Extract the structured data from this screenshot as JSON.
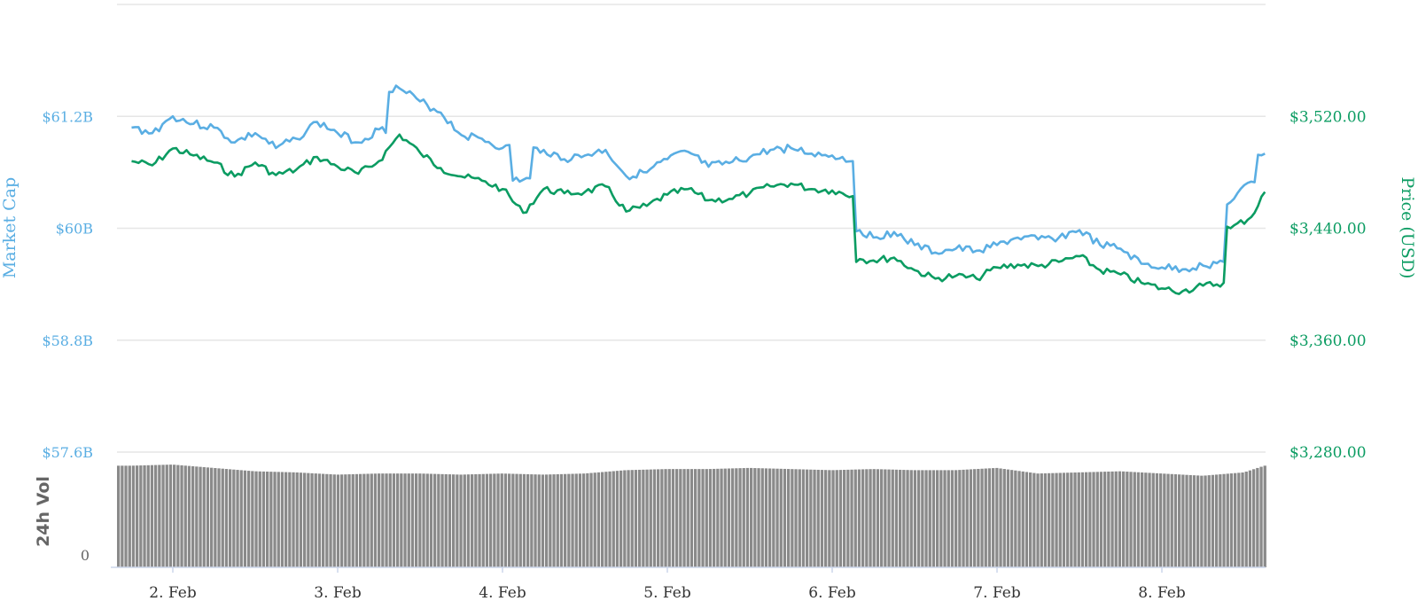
{
  "chart_data": {
    "type": "line",
    "x_ticks": [
      "2. Feb",
      "3. Feb",
      "4. Feb",
      "5. Feb",
      "6. Feb",
      "7. Feb",
      "8. Feb"
    ],
    "x_range": [
      "2. Feb",
      "8. Feb"
    ],
    "left_axis": {
      "title": "Market Cap",
      "ticks": [
        "$61.2B",
        "$60B",
        "$58.8B",
        "$57.6B"
      ],
      "tick_values": [
        61.2,
        60.0,
        58.8,
        57.6
      ],
      "unit": "USD billions",
      "range": [
        57.6,
        62.4
      ]
    },
    "right_axis": {
      "title": "Price (USD)",
      "ticks": [
        "$3,520.00",
        "$3,440.00",
        "$3,360.00",
        "$3,280.00"
      ],
      "tick_values": [
        3520,
        3440,
        3360,
        3280
      ],
      "range": [
        3280,
        3600
      ]
    },
    "volume_axis": {
      "title": "24h Vol",
      "ticks": [
        "0"
      ],
      "tick_values": [
        0
      ]
    },
    "grid": true,
    "colors": {
      "market_cap": "#5aaee3",
      "price": "#0b9c62",
      "volume": "#8a8a8a",
      "grid": "#e6e6e6"
    },
    "series": [
      {
        "key": "market_cap",
        "axis": "left",
        "points": [
          [
            "1. Feb 18:00",
            61.08
          ],
          [
            "1. Feb 21:00",
            61.02
          ],
          [
            "2. Feb 00:00",
            61.2
          ],
          [
            "2. Feb 03:00",
            61.12
          ],
          [
            "2. Feb 06:00",
            61.08
          ],
          [
            "2. Feb 09:00",
            60.92
          ],
          [
            "2. Feb 12:00",
            61.02
          ],
          [
            "2. Feb 15:00",
            60.86
          ],
          [
            "2. Feb 18:00",
            60.96
          ],
          [
            "2. Feb 21:00",
            61.14
          ],
          [
            "3. Feb 00:00",
            61.02
          ],
          [
            "3. Feb 03:00",
            60.92
          ],
          [
            "3. Feb 06:00",
            61.06
          ],
          [
            "3. Feb 09:00",
            61.5
          ],
          [
            "3. Feb 12:00",
            61.36
          ],
          [
            "3. Feb 15:00",
            61.24
          ],
          [
            "3. Feb 18:00",
            61.0
          ],
          [
            "3. Feb 21:00",
            60.96
          ],
          [
            "4. Feb 00:00",
            60.86
          ],
          [
            "4. Feb 03:00",
            60.52
          ],
          [
            "4. Feb 06:00",
            60.84
          ],
          [
            "4. Feb 09:00",
            60.74
          ],
          [
            "4. Feb 12:00",
            60.78
          ],
          [
            "4. Feb 15:00",
            60.84
          ],
          [
            "4. Feb 18:00",
            60.56
          ],
          [
            "4. Feb 21:00",
            60.6
          ],
          [
            "5. Feb 00:00",
            60.74
          ],
          [
            "5. Feb 03:00",
            60.82
          ],
          [
            "5. Feb 06:00",
            60.66
          ],
          [
            "5. Feb 09:00",
            60.7
          ],
          [
            "5. Feb 12:00",
            60.76
          ],
          [
            "5. Feb 15:00",
            60.84
          ],
          [
            "5. Feb 18:00",
            60.86
          ],
          [
            "5. Feb 21:00",
            60.8
          ],
          [
            "6. Feb 00:00",
            60.78
          ],
          [
            "6. Feb 03:00",
            60.72
          ],
          [
            "6. Feb 04:00",
            59.98
          ],
          [
            "6. Feb 06:00",
            59.9
          ],
          [
            "6. Feb 09:00",
            59.96
          ],
          [
            "6. Feb 12:00",
            59.82
          ],
          [
            "6. Feb 15:00",
            59.74
          ],
          [
            "6. Feb 18:00",
            59.78
          ],
          [
            "6. Feb 21:00",
            59.76
          ],
          [
            "7. Feb 00:00",
            59.82
          ],
          [
            "7. Feb 03:00",
            59.9
          ],
          [
            "7. Feb 06:00",
            59.88
          ],
          [
            "7. Feb 09:00",
            59.9
          ],
          [
            "7. Feb 12:00",
            59.98
          ],
          [
            "7. Feb 15:00",
            59.82
          ],
          [
            "7. Feb 18:00",
            59.78
          ],
          [
            "7. Feb 21:00",
            59.62
          ],
          [
            "8. Feb 00:00",
            59.58
          ],
          [
            "8. Feb 03:00",
            59.56
          ],
          [
            "8. Feb 06:00",
            59.6
          ],
          [
            "8. Feb 09:00",
            59.64
          ],
          [
            "8. Feb 10:00",
            60.28
          ],
          [
            "8. Feb 13:00",
            60.5
          ],
          [
            "8. Feb 15:00",
            60.8
          ]
        ]
      },
      {
        "key": "price",
        "axis": "right",
        "points": [
          [
            "1. Feb 18:00",
            3488
          ],
          [
            "1. Feb 21:00",
            3485
          ],
          [
            "2. Feb 00:00",
            3497
          ],
          [
            "2. Feb 03:00",
            3492
          ],
          [
            "2. Feb 06:00",
            3487
          ],
          [
            "2. Feb 09:00",
            3477
          ],
          [
            "2. Feb 12:00",
            3487
          ],
          [
            "2. Feb 15:00",
            3478
          ],
          [
            "2. Feb 18:00",
            3482
          ],
          [
            "2. Feb 21:00",
            3491
          ],
          [
            "3. Feb 00:00",
            3484
          ],
          [
            "3. Feb 03:00",
            3479
          ],
          [
            "3. Feb 06:00",
            3488
          ],
          [
            "3. Feb 09:00",
            3507
          ],
          [
            "3. Feb 12:00",
            3494
          ],
          [
            "3. Feb 15:00",
            3483
          ],
          [
            "3. Feb 18:00",
            3477
          ],
          [
            "3. Feb 21:00",
            3474
          ],
          [
            "4. Feb 00:00",
            3468
          ],
          [
            "4. Feb 03:00",
            3451
          ],
          [
            "4. Feb 06:00",
            3468
          ],
          [
            "4. Feb 09:00",
            3465
          ],
          [
            "4. Feb 12:00",
            3466
          ],
          [
            "4. Feb 15:00",
            3470
          ],
          [
            "4. Feb 18:00",
            3452
          ],
          [
            "4. Feb 21:00",
            3456
          ],
          [
            "5. Feb 00:00",
            3464
          ],
          [
            "5. Feb 03:00",
            3468
          ],
          [
            "5. Feb 06:00",
            3460
          ],
          [
            "5. Feb 09:00",
            3461
          ],
          [
            "5. Feb 12:00",
            3465
          ],
          [
            "5. Feb 15:00",
            3470
          ],
          [
            "5. Feb 18:00",
            3472
          ],
          [
            "5. Feb 21:00",
            3468
          ],
          [
            "6. Feb 00:00",
            3467
          ],
          [
            "6. Feb 03:00",
            3463
          ],
          [
            "6. Feb 04:00",
            3418
          ],
          [
            "6. Feb 06:00",
            3417
          ],
          [
            "6. Feb 09:00",
            3419
          ],
          [
            "6. Feb 12:00",
            3410
          ],
          [
            "6. Feb 15:00",
            3404
          ],
          [
            "6. Feb 18:00",
            3406
          ],
          [
            "6. Feb 21:00",
            3404
          ],
          [
            "7. Feb 00:00",
            3412
          ],
          [
            "7. Feb 03:00",
            3414
          ],
          [
            "7. Feb 06:00",
            3413
          ],
          [
            "7. Feb 09:00",
            3416
          ],
          [
            "7. Feb 12:00",
            3420
          ],
          [
            "7. Feb 15:00",
            3410
          ],
          [
            "7. Feb 18:00",
            3407
          ],
          [
            "7. Feb 21:00",
            3401
          ],
          [
            "8. Feb 00:00",
            3397
          ],
          [
            "8. Feb 03:00",
            3395
          ],
          [
            "8. Feb 06:00",
            3399
          ],
          [
            "8. Feb 09:00",
            3401
          ],
          [
            "8. Feb 10:00",
            3440
          ],
          [
            "8. Feb 13:00",
            3448
          ],
          [
            "8. Feb 15:00",
            3466
          ]
        ]
      },
      {
        "key": "volume",
        "axis": "volume",
        "type": "bar",
        "relative_levels": [
          [
            "1. Feb 18:00",
            0.91
          ],
          [
            "2. Feb 00:00",
            0.92
          ],
          [
            "2. Feb 06:00",
            0.89
          ],
          [
            "2. Feb 12:00",
            0.86
          ],
          [
            "2. Feb 18:00",
            0.85
          ],
          [
            "3. Feb 00:00",
            0.83
          ],
          [
            "3. Feb 06:00",
            0.84
          ],
          [
            "3. Feb 12:00",
            0.84
          ],
          [
            "3. Feb 18:00",
            0.83
          ],
          [
            "4. Feb 00:00",
            0.84
          ],
          [
            "4. Feb 06:00",
            0.83
          ],
          [
            "4. Feb 12:00",
            0.84
          ],
          [
            "4. Feb 18:00",
            0.87
          ],
          [
            "5. Feb 00:00",
            0.88
          ],
          [
            "5. Feb 06:00",
            0.88
          ],
          [
            "5. Feb 12:00",
            0.89
          ],
          [
            "5. Feb 18:00",
            0.88
          ],
          [
            "6. Feb 00:00",
            0.87
          ],
          [
            "6. Feb 06:00",
            0.88
          ],
          [
            "6. Feb 12:00",
            0.87
          ],
          [
            "6. Feb 18:00",
            0.87
          ],
          [
            "7. Feb 00:00",
            0.89
          ],
          [
            "7. Feb 06:00",
            0.84
          ],
          [
            "7. Feb 12:00",
            0.85
          ],
          [
            "7. Feb 18:00",
            0.86
          ],
          [
            "8. Feb 00:00",
            0.84
          ],
          [
            "8. Feb 06:00",
            0.82
          ],
          [
            "8. Feb 12:00",
            0.85
          ],
          [
            "8. Feb 15:00",
            0.91
          ]
        ]
      }
    ]
  }
}
